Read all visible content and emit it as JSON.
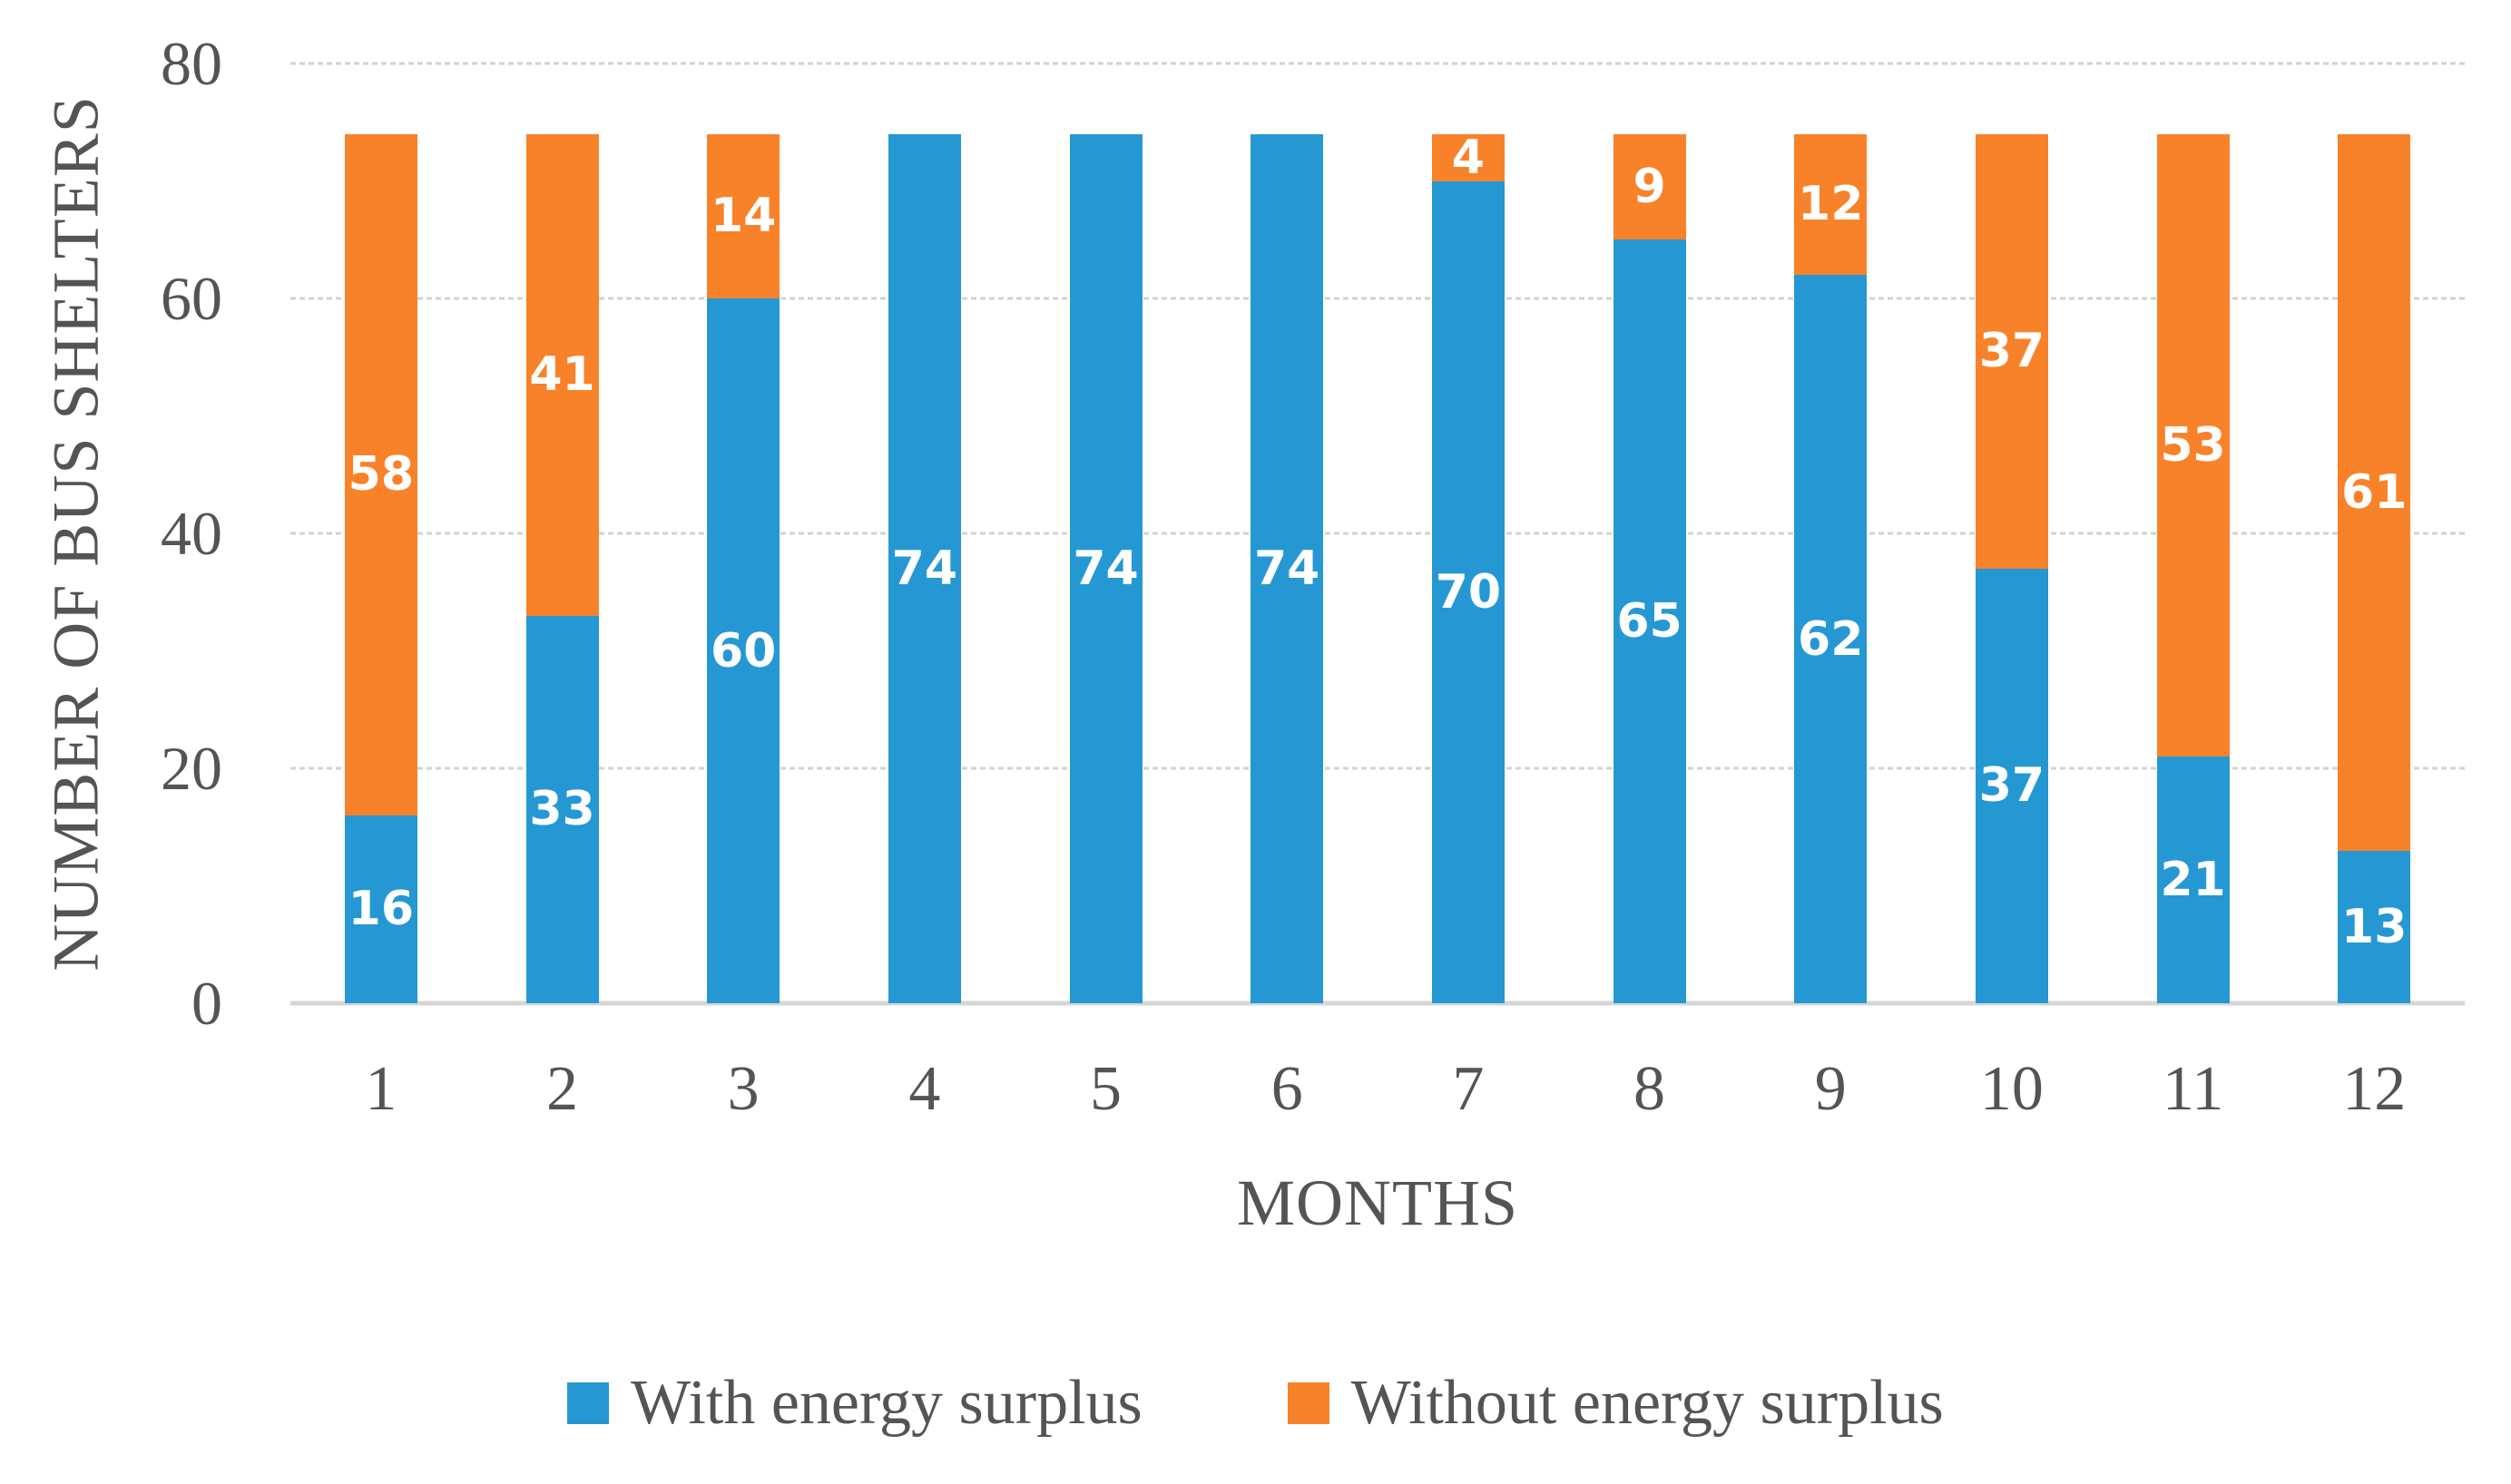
{
  "chart_data": {
    "type": "bar",
    "stacked": true,
    "title": "",
    "xlabel": "MONTHS",
    "ylabel": "NUMBER OF BUS SHELTERS",
    "categories": [
      "1",
      "2",
      "3",
      "4",
      "5",
      "6",
      "7",
      "8",
      "9",
      "10",
      "11",
      "12"
    ],
    "series": [
      {
        "name": "With energy surplus",
        "color": "#2598d4",
        "values": [
          16,
          33,
          60,
          74,
          74,
          74,
          70,
          65,
          62,
          37,
          21,
          13
        ]
      },
      {
        "name": "Without energy surplus",
        "color": "#f8822a",
        "values": [
          58,
          41,
          14,
          0,
          0,
          0,
          4,
          9,
          12,
          37,
          53,
          61
        ]
      }
    ],
    "ylim": [
      0,
      80
    ],
    "yticks": [
      0,
      20,
      40,
      60,
      80
    ],
    "grid": true,
    "legend_position": "bottom",
    "data_labels_shown": true,
    "data_label_color": "#ffffff",
    "gridline_color": "#d2d2d2",
    "axis_line_color": "#d6d6d6",
    "axis_text_color": "#545454"
  }
}
